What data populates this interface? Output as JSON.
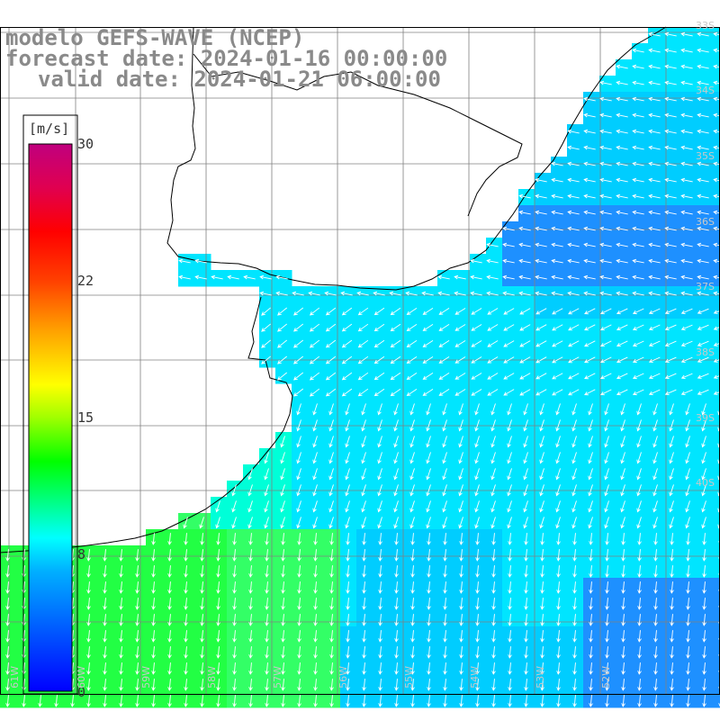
{
  "title": {
    "line1": "modelo GEFS-WAVE (NCEP)",
    "line2": "forecast date: 2024-01-16 00:00:00",
    "line3": "valid date: 2024-01-21 06:00:00"
  },
  "colorbar": {
    "unit": "[m/s]",
    "ticks": [
      "30",
      "22",
      "15",
      "8",
      "0"
    ],
    "tick_values": [
      30,
      22,
      15,
      8,
      0
    ],
    "colors": [
      "#0000ff",
      "#00a0ff",
      "#00ffff",
      "#00ff40",
      "#40ff00",
      "#ffff00",
      "#ff8000",
      "#ff0000",
      "#d00060",
      "#c00090"
    ]
  },
  "lat_labels": [
    "33S",
    "34S",
    "35S",
    "36S",
    "37S",
    "38S",
    "39S",
    "40S"
  ],
  "lon_labels": [
    "61W",
    "60W",
    "59W",
    "58W",
    "57W",
    "56W",
    "55W",
    "54W",
    "53W",
    "52W"
  ],
  "field": {
    "description_values": "wind speed",
    "dominant_direction": "from east-northeast, turning to from north in south",
    "colors": {
      "blue": "#1e90ff",
      "cyan": "#00cdff",
      "lightcyan": "#00e5ff",
      "aqua": "#00ffd8",
      "green": "#33ff66",
      "brightgreen": "#22ff44"
    }
  }
}
